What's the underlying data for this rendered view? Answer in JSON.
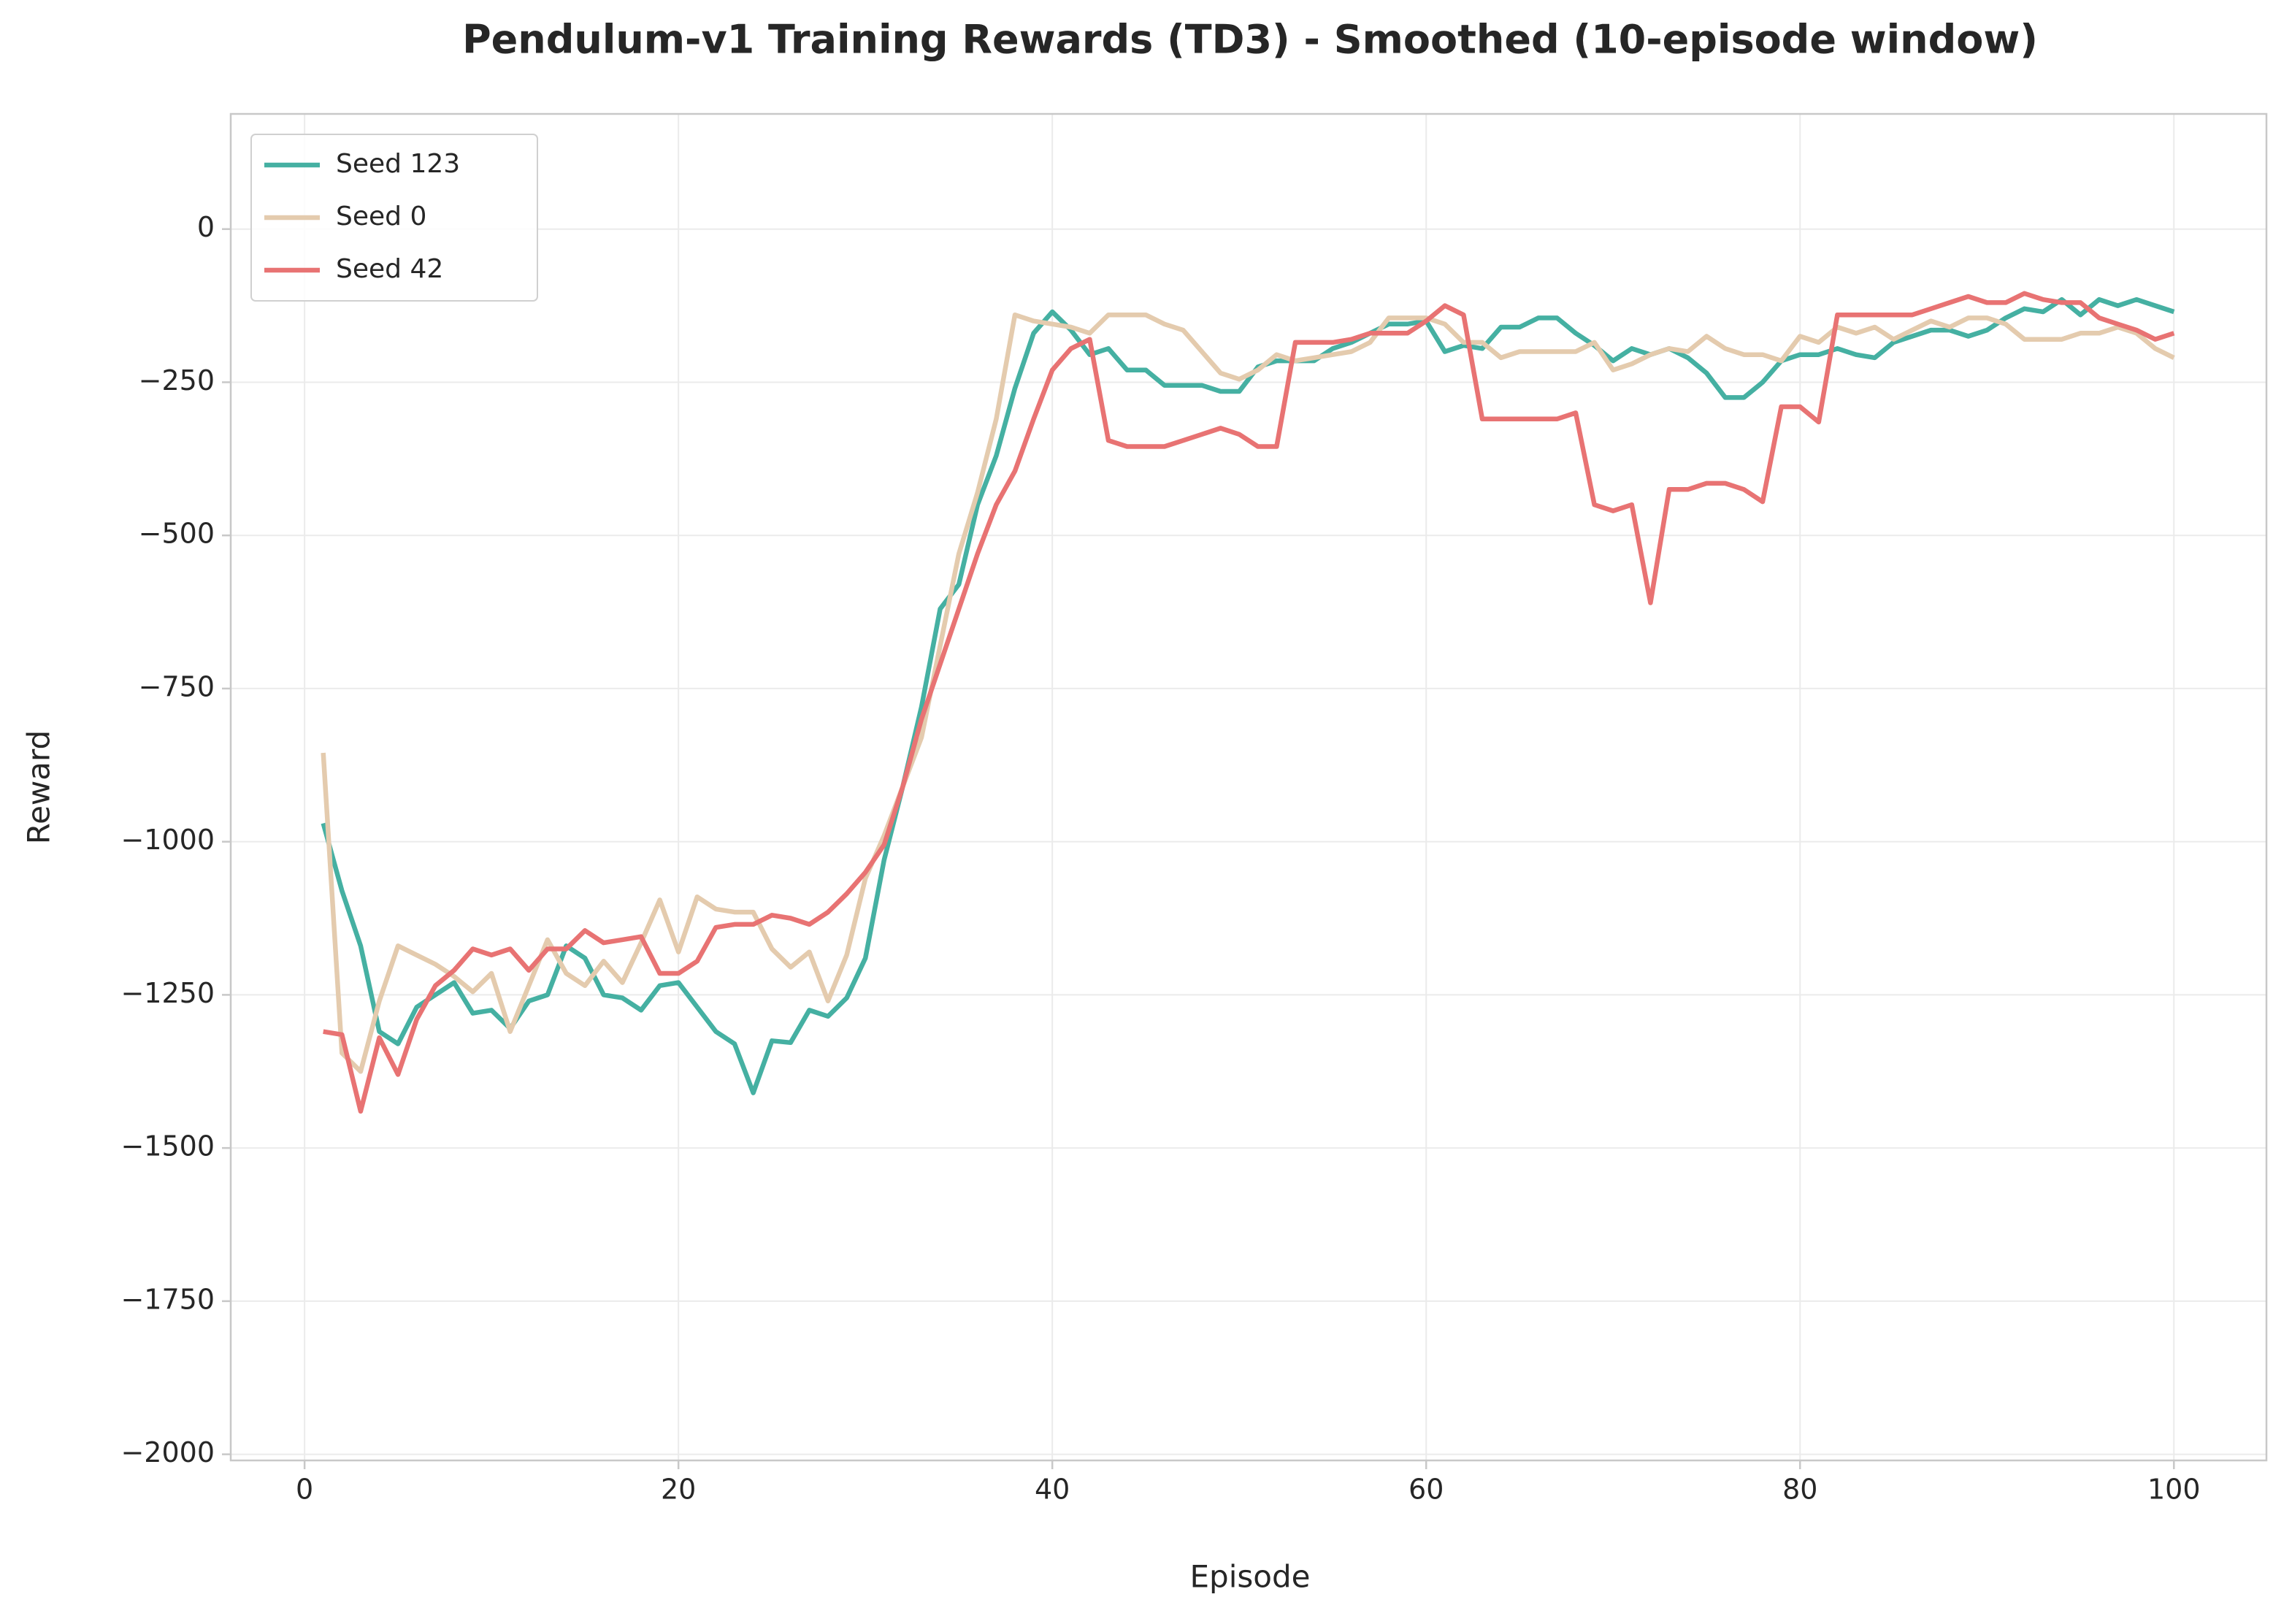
{
  "chart_data": {
    "type": "line",
    "title": "Pendulum-v1 Training Rewards (TD3) - Smoothed (10-episode window)",
    "xlabel": "Episode",
    "ylabel": "Reward",
    "x": [
      1,
      2,
      3,
      4,
      5,
      6,
      7,
      8,
      9,
      10,
      11,
      12,
      13,
      14,
      15,
      16,
      17,
      18,
      19,
      20,
      21,
      22,
      23,
      24,
      25,
      26,
      27,
      28,
      29,
      30,
      31,
      32,
      33,
      34,
      35,
      36,
      37,
      38,
      39,
      40,
      41,
      42,
      43,
      44,
      45,
      46,
      47,
      48,
      49,
      50,
      51,
      52,
      53,
      54,
      55,
      56,
      57,
      58,
      59,
      60,
      61,
      62,
      63,
      64,
      65,
      66,
      67,
      68,
      69,
      70,
      71,
      72,
      73,
      74,
      75,
      76,
      77,
      78,
      79,
      80,
      81,
      82,
      83,
      84,
      85,
      86,
      87,
      88,
      89,
      90,
      91,
      92,
      93,
      94,
      95,
      96,
      97,
      98,
      99,
      100
    ],
    "series": [
      {
        "name": "Seed 123",
        "color": "#45b0a2",
        "values": [
          -970,
          -1080,
          -1170,
          -1310,
          -1330,
          -1270,
          -1250,
          -1230,
          -1280,
          -1275,
          -1305,
          -1260,
          -1250,
          -1170,
          -1190,
          -1250,
          -1255,
          -1275,
          -1235,
          -1230,
          -1270,
          -1310,
          -1330,
          -1410,
          -1325,
          -1328,
          -1275,
          -1285,
          -1255,
          -1190,
          -1030,
          -910,
          -780,
          -620,
          -580,
          -450,
          -370,
          -260,
          -170,
          -135,
          -165,
          -205,
          -195,
          -230,
          -230,
          -255,
          -255,
          -255,
          -265,
          -265,
          -225,
          -215,
          -215,
          -215,
          -195,
          -185,
          -170,
          -155,
          -155,
          -150,
          -200,
          -190,
          -195,
          -160,
          -160,
          -145,
          -145,
          -170,
          -190,
          -215,
          -195,
          -205,
          -195,
          -210,
          -235,
          -275,
          -275,
          -250,
          -215,
          -205,
          -205,
          -195,
          -205,
          -210,
          -185,
          -175,
          -165,
          -165,
          -175,
          -165,
          -145,
          -130,
          -135,
          -115,
          -140,
          -115,
          -125,
          -115,
          -125,
          -135
        ]
      },
      {
        "name": "Seed 0",
        "color": "#e4cbae",
        "values": [
          -855,
          -1345,
          -1375,
          -1260,
          -1170,
          -1185,
          -1200,
          -1220,
          -1245,
          -1215,
          -1310,
          -1235,
          -1160,
          -1215,
          -1235,
          -1195,
          -1230,
          -1165,
          -1095,
          -1180,
          -1090,
          -1110,
          -1115,
          -1115,
          -1175,
          -1205,
          -1180,
          -1260,
          -1185,
          -1060,
          -990,
          -910,
          -830,
          -680,
          -530,
          -430,
          -310,
          -140,
          -150,
          -155,
          -160,
          -170,
          -140,
          -140,
          -140,
          -155,
          -165,
          -200,
          -235,
          -245,
          -230,
          -205,
          -215,
          -210,
          -205,
          -200,
          -185,
          -145,
          -145,
          -145,
          -155,
          -185,
          -185,
          -210,
          -200,
          -200,
          -200,
          -200,
          -185,
          -230,
          -220,
          -205,
          -195,
          -200,
          -175,
          -195,
          -205,
          -205,
          -215,
          -175,
          -185,
          -160,
          -170,
          -160,
          -180,
          -165,
          -150,
          -160,
          -145,
          -145,
          -155,
          -180,
          -180,
          -180,
          -170,
          -170,
          -160,
          -170,
          -195,
          -210
        ]
      },
      {
        "name": "Seed 42",
        "color": "#e87373",
        "values": [
          -1310,
          -1315,
          -1440,
          -1320,
          -1380,
          -1290,
          -1235,
          -1210,
          -1175,
          -1185,
          -1175,
          -1210,
          -1175,
          -1175,
          -1145,
          -1165,
          -1160,
          -1155,
          -1215,
          -1215,
          -1195,
          -1140,
          -1135,
          -1135,
          -1120,
          -1125,
          -1135,
          -1115,
          -1085,
          -1050,
          -1005,
          -910,
          -800,
          -710,
          -620,
          -530,
          -450,
          -395,
          -310,
          -230,
          -195,
          -180,
          -345,
          -355,
          -355,
          -355,
          -345,
          -335,
          -325,
          -335,
          -355,
          -355,
          -185,
          -185,
          -185,
          -180,
          -170,
          -170,
          -170,
          -150,
          -125,
          -140,
          -310,
          -310,
          -310,
          -310,
          -310,
          -300,
          -450,
          -460,
          -450,
          -610,
          -425,
          -425,
          -415,
          -415,
          -425,
          -445,
          -290,
          -290,
          -315,
          -140,
          -140,
          -140,
          -140,
          -140,
          -130,
          -120,
          -110,
          -120,
          -120,
          -105,
          -115,
          -120,
          -120,
          -145,
          -155,
          -165,
          -180,
          -170
        ]
      }
    ],
    "xlim": [
      -3.95,
      104.95
    ],
    "xticks": [
      0,
      20,
      40,
      60,
      80,
      100
    ],
    "ylim": [
      -2010,
      188
    ],
    "yticks": [
      {
        "value": -2000,
        "label": "−2000"
      },
      {
        "value": -1750,
        "label": "−1750"
      },
      {
        "value": -1500,
        "label": "−1500"
      },
      {
        "value": -1250,
        "label": "−1250"
      },
      {
        "value": -1000,
        "label": "−1000"
      },
      {
        "value": -750,
        "label": "−750"
      },
      {
        "value": -500,
        "label": "−500"
      },
      {
        "value": -250,
        "label": "−250"
      },
      0
    ],
    "grid": true,
    "legend": "upper left"
  }
}
